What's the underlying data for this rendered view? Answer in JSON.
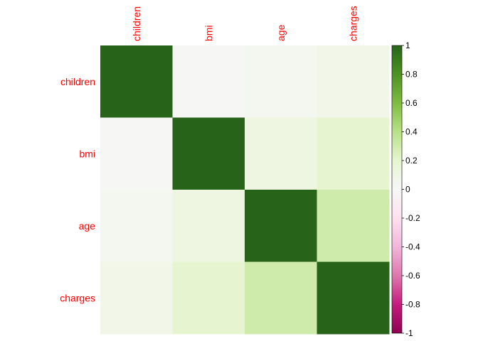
{
  "chart_data": {
    "type": "heatmap",
    "title": "",
    "variables": [
      "children",
      "bmi",
      "age",
      "charges"
    ],
    "row_labels": [
      "children",
      "bmi",
      "age",
      "charges"
    ],
    "col_labels": [
      "children",
      "bmi",
      "age",
      "charges"
    ],
    "values": [
      [
        1.0,
        0.01,
        0.04,
        0.07
      ],
      [
        0.01,
        1.0,
        0.11,
        0.2
      ],
      [
        0.04,
        0.11,
        1.0,
        0.3
      ],
      [
        0.07,
        0.2,
        0.3,
        1.0
      ]
    ],
    "color_range": [
      -1,
      1
    ],
    "colorbar": {
      "ticks": [
        1,
        0.8,
        0.6,
        0.4,
        0.2,
        0,
        -0.2,
        -0.4,
        -0.6,
        -0.8,
        -1
      ],
      "tick_labels": [
        "1",
        "0.8",
        "0.6",
        "0.4",
        "0.2",
        "0",
        "-0.2",
        "-0.4",
        "-0.6",
        "-0.8",
        "-1"
      ],
      "position": "right"
    },
    "label_color": "#ff0000",
    "palette": [
      "#8e0152",
      "#c51b7d",
      "#de77ae",
      "#f1b6da",
      "#fde0ef",
      "#f7f7f7",
      "#e6f5d0",
      "#b8e186",
      "#7fbc41",
      "#4d9221",
      "#276419"
    ]
  }
}
